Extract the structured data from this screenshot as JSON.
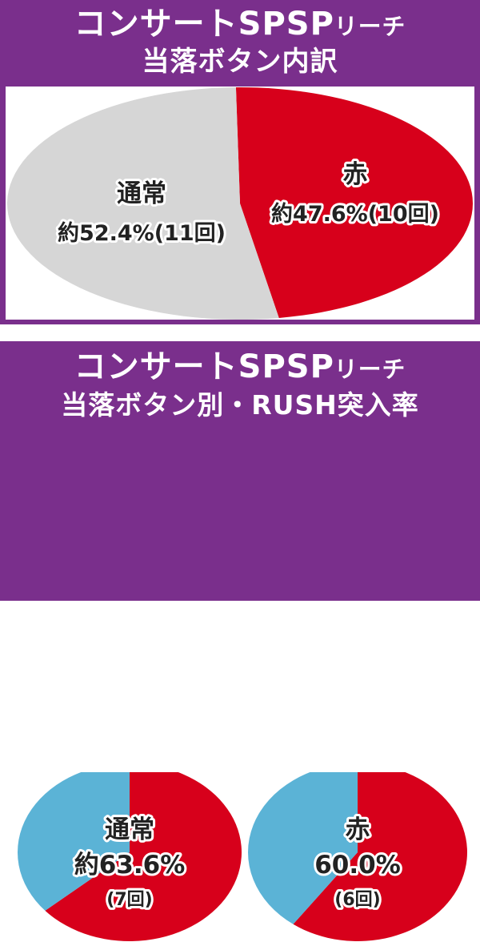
{
  "section1": {
    "title_line1": "コンサートSPSP",
    "title_line1_small": "リーチ",
    "title_line2": "当落ボタン内訳"
  },
  "section2": {
    "title_line1": "コンサートSPSP",
    "title_line1_small": "リーチ",
    "title_line2": "当落ボタン別・RUSH突入率"
  },
  "colors": {
    "header_bg": "#7a2f8c",
    "red": "#d7001b",
    "gray": "#d6d6d6",
    "blue": "#5bb3d6"
  },
  "chart_data": [
    {
      "type": "pie",
      "title": "コンサートSPSPリーチ 当落ボタン内訳",
      "slices": [
        {
          "name": "通常",
          "label": "約52.4%(11回)",
          "value": 52.4,
          "count": 11,
          "color": "#d6d6d6"
        },
        {
          "name": "赤",
          "label": "約47.6%(10回)",
          "value": 47.6,
          "count": 10,
          "color": "#d7001b"
        }
      ]
    },
    {
      "type": "pie",
      "title": "コンサートSPSPリーチ 当落ボタン別・RUSH突入率",
      "name": "通常",
      "label_pct": "約63.6%",
      "label_count": "(7回)",
      "slices": [
        {
          "name": "RUSH突入",
          "value": 63.6,
          "color": "#d7001b"
        },
        {
          "value": 36.4,
          "color": "#5bb3d6"
        }
      ]
    },
    {
      "type": "pie",
      "title": "コンサートSPSPリーチ 当落ボタン別・RUSH突入率",
      "name": "赤",
      "label_pct": "60.0%",
      "label_count": "(6回)",
      "slices": [
        {
          "name": "RUSH突入",
          "value": 60.0,
          "color": "#d7001b"
        },
        {
          "value": 40.0,
          "color": "#5bb3d6"
        }
      ]
    }
  ]
}
